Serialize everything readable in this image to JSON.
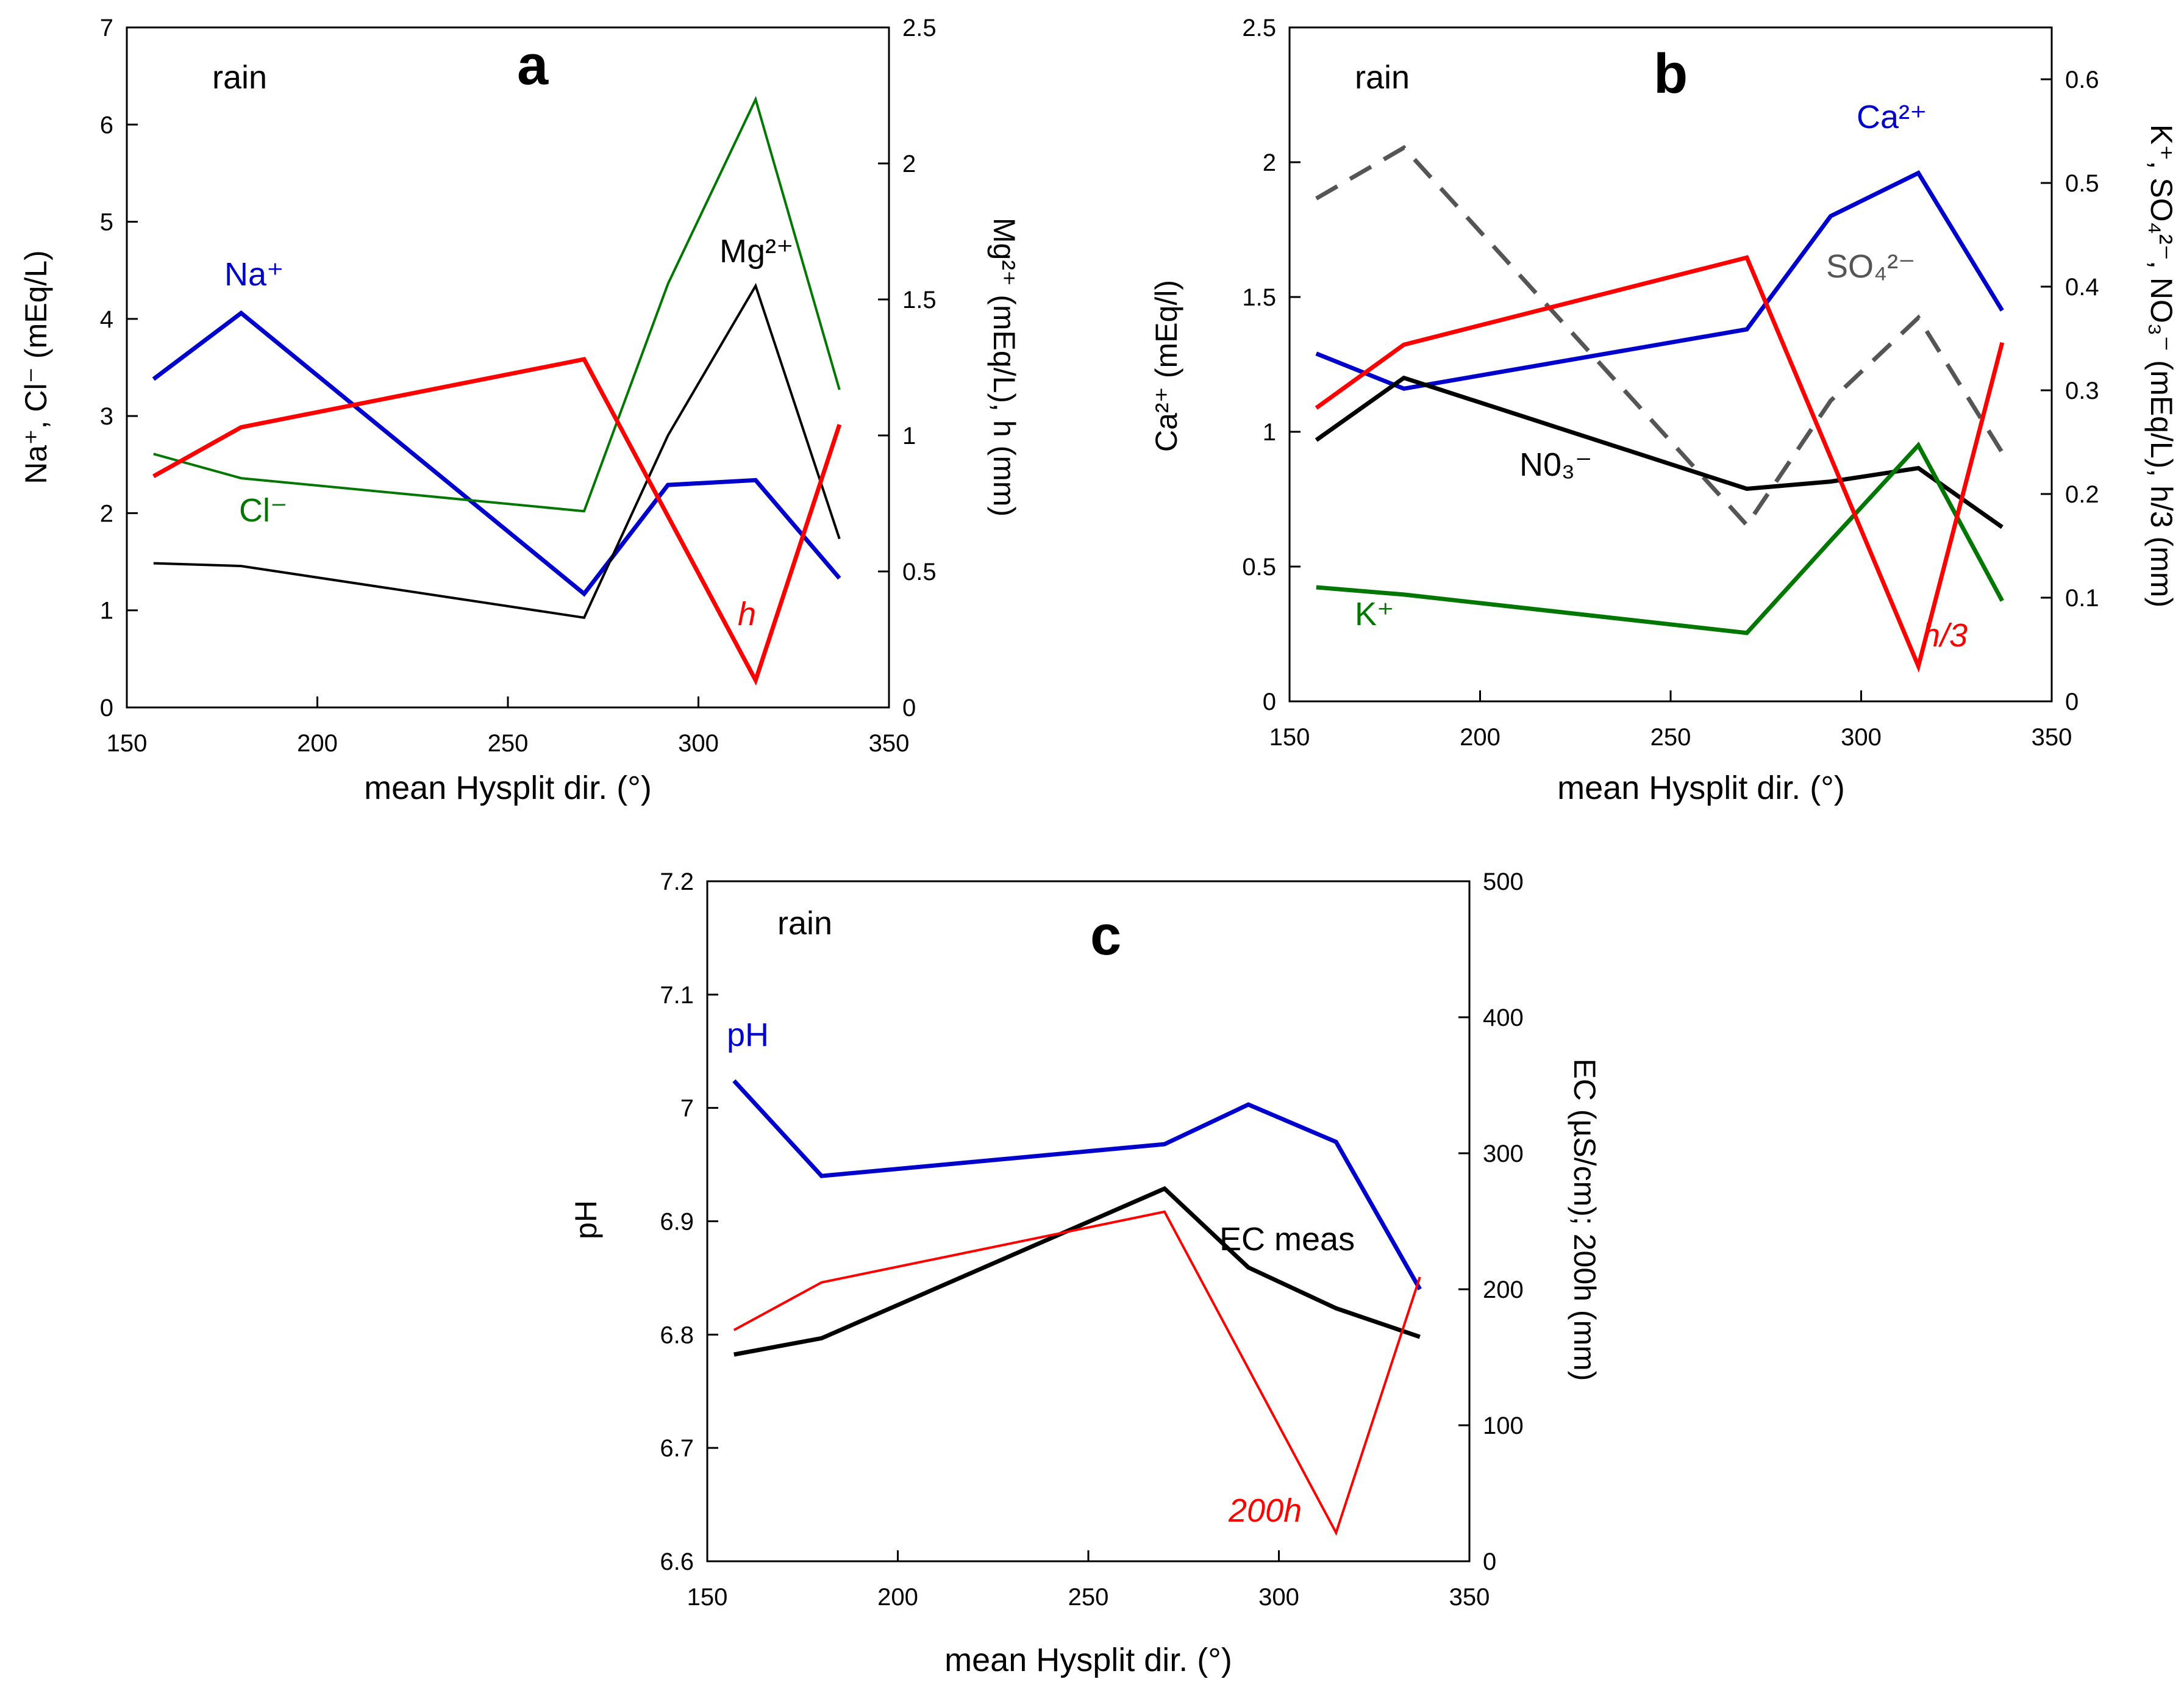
{
  "chart_data": [
    {
      "id": "a",
      "type": "line",
      "panel_label": "a",
      "caption": "rain",
      "xlabel": "mean Hysplit dir. (°)",
      "xlim": [
        150,
        350
      ],
      "xticks": [
        "150",
        "200",
        "250",
        "300",
        "350"
      ],
      "ylabel_left": "Na⁺, Cl⁻ (mEq/L)",
      "ylim_left": [
        0,
        7
      ],
      "yticks_left": [
        "0",
        "1",
        "2",
        "3",
        "4",
        "5",
        "6",
        "7"
      ],
      "ylabel_right": "Mg²⁺ (mEq/L), h (mm)",
      "ylim_right": [
        0,
        2.5
      ],
      "yticks_right": [
        "0",
        "0.5",
        "1",
        "1.5",
        "2",
        "2.5"
      ],
      "series": [
        {
          "name": "Na+",
          "label": "Na⁺",
          "axis": "left",
          "color": "#0000cc",
          "x": [
            157,
            180,
            270,
            292,
            315,
            337
          ],
          "values": [
            3.38,
            4.06,
            1.17,
            2.29,
            2.34,
            1.33
          ]
        },
        {
          "name": "Cl-",
          "label": "Cl⁻",
          "axis": "left",
          "color": "#007700",
          "x": [
            157,
            180,
            270,
            292,
            315,
            337
          ],
          "values": [
            2.61,
            2.36,
            2.02,
            4.36,
            6.26,
            3.27
          ]
        },
        {
          "name": "Mg2+",
          "label": "Mg²⁺",
          "axis": "right",
          "color": "#000000",
          "x": [
            157,
            180,
            270,
            292,
            315,
            337
          ],
          "values": [
            0.53,
            0.52,
            0.33,
            1.0,
            1.55,
            0.62
          ]
        },
        {
          "name": "h",
          "label": "h",
          "axis": "right",
          "color": "#ff0000",
          "x": [
            157,
            180,
            270,
            315,
            337
          ],
          "values": [
            0.85,
            1.03,
            1.28,
            0.1,
            1.04
          ]
        }
      ]
    },
    {
      "id": "b",
      "type": "line",
      "panel_label": "b",
      "caption": "rain",
      "xlabel": "mean Hysplit dir. (°)",
      "xlim": [
        150,
        350
      ],
      "xticks": [
        "150",
        "200",
        "250",
        "300",
        "350"
      ],
      "ylabel_left": "Ca²⁺ (mEq/l)",
      "ylim_left": [
        0,
        2.5
      ],
      "yticks_left": [
        "0",
        "0.5",
        "1",
        "1.5",
        "2",
        "2.5"
      ],
      "ylabel_right": "K⁺, SO₄²⁻, NO₃⁻ (mEq/L), h/3 (mm)",
      "ylim_right": [
        0,
        0.65
      ],
      "yticks_right": [
        "0",
        "0.1",
        "0.2",
        "0.3",
        "0.4",
        "0.5",
        "0.6"
      ],
      "series": [
        {
          "name": "Ca2+",
          "label": "Ca²⁺",
          "axis": "left",
          "color": "#0000cc",
          "x": [
            157,
            180,
            270,
            292,
            315,
            337
          ],
          "values": [
            1.29,
            1.16,
            1.38,
            1.8,
            1.96,
            1.45
          ]
        },
        {
          "name": "SO42-",
          "label": "SO₄²⁻",
          "axis": "right",
          "color": "#555555",
          "dashed": true,
          "x": [
            157,
            180,
            270,
            292,
            315,
            337
          ],
          "values": [
            0.485,
            0.534,
            0.17,
            0.29,
            0.37,
            0.24
          ]
        },
        {
          "name": "NO3-",
          "label": "N0₃⁻",
          "axis": "right",
          "color": "#000000",
          "x": [
            157,
            180,
            270,
            292,
            315,
            337
          ],
          "values": [
            0.252,
            0.312,
            0.205,
            0.212,
            0.225,
            0.168
          ]
        },
        {
          "name": "K+",
          "label": "K⁺",
          "axis": "right",
          "color": "#007700",
          "x": [
            157,
            180,
            270,
            292,
            315,
            337
          ],
          "values": [
            0.11,
            0.103,
            0.066,
            0.155,
            0.247,
            0.097
          ]
        },
        {
          "name": "h/3",
          "label": "h/3",
          "axis": "right",
          "color": "#ff0000",
          "x": [
            157,
            180,
            270,
            315,
            337
          ],
          "values": [
            0.283,
            0.344,
            0.428,
            0.034,
            0.346
          ]
        }
      ]
    },
    {
      "id": "c",
      "type": "line",
      "panel_label": "c",
      "caption": "rain",
      "xlabel": "mean Hysplit dir. (°)",
      "xlim": [
        150,
        350
      ],
      "xticks": [
        "150",
        "200",
        "250",
        "300",
        "350"
      ],
      "ylabel_left": "pH",
      "ylim_left": [
        6.6,
        7.2
      ],
      "yticks_left": [
        "6.6",
        "6.7",
        "6.8",
        "6.9",
        "7",
        "7.1",
        "7.2"
      ],
      "ylabel_right": "EC (µS/cm); 200h (mm)",
      "ylim_right": [
        0,
        500
      ],
      "yticks_right": [
        "0",
        "100",
        "200",
        "300",
        "400",
        "500"
      ],
      "series": [
        {
          "name": "pH",
          "label": "pH",
          "axis": "left",
          "color": "#0000cc",
          "x": [
            157,
            180,
            270,
            292,
            315,
            337
          ],
          "values": [
            7.024,
            6.94,
            6.968,
            7.003,
            6.97,
            6.84
          ]
        },
        {
          "name": "EC meas",
          "label": "EC meas",
          "axis": "right",
          "color": "#000000",
          "x": [
            157,
            180,
            270,
            292,
            315,
            337
          ],
          "values": [
            152,
            164,
            274,
            216,
            186,
            165
          ]
        },
        {
          "name": "200h",
          "label": "200h",
          "axis": "right",
          "color": "#ff0000",
          "x": [
            157,
            180,
            270,
            315,
            337
          ],
          "values": [
            170,
            205,
            257,
            21,
            209
          ]
        }
      ]
    }
  ]
}
